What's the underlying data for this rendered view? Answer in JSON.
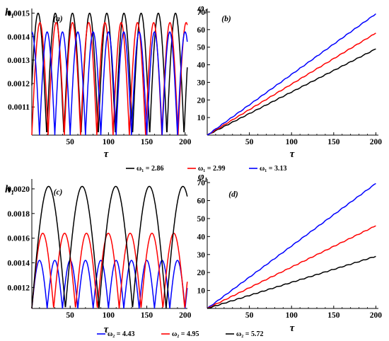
{
  "chart_data": [
    {
      "type": "line",
      "panel_label": "(a)",
      "xlabel": "τ",
      "ylabel": "h₁",
      "xlim": [
        0,
        203
      ],
      "ylim": [
        0.00098,
        0.00152
      ],
      "xticks": [
        "50",
        "100",
        "150",
        "200"
      ],
      "yticks": [
        "0.0011",
        "0.0012",
        "0.0013",
        "0.0014",
        "0.0015"
      ],
      "series": [
        {
          "name": "ω₁ = 2.86",
          "color": "#000000",
          "amplitude_max": 0.0015,
          "minimum": 0.00098,
          "period": 22.4,
          "phase": 3.0
        },
        {
          "name": "ω₁ = 2.99",
          "color": "#ff0000",
          "amplitude_max": 0.00146,
          "minimum": 0.00098,
          "period": 21.2,
          "phase": 0.0
        },
        {
          "name": "ω₁ = 3.13",
          "color": "#0000ff",
          "amplitude_max": 0.00142,
          "minimum": 0.00098,
          "period": 20.0,
          "phase": 10.0
        }
      ]
    },
    {
      "type": "line",
      "panel_label": "(b)",
      "xlabel": "τ",
      "ylabel": "φ₁",
      "xlim": [
        0,
        203
      ],
      "ylim": [
        0,
        72
      ],
      "xticks": [
        "50",
        "100",
        "150",
        "200"
      ],
      "yticks": [
        "10",
        "20",
        "30",
        "40",
        "50",
        "60",
        "70"
      ],
      "series": [
        {
          "name": "ω₁ = 2.86",
          "color": "#000000",
          "x": [
            0,
            200
          ],
          "y": [
            0,
            49
          ]
        },
        {
          "name": "ω₁ = 2.99",
          "color": "#ff0000",
          "x": [
            0,
            200
          ],
          "y": [
            0,
            58
          ]
        },
        {
          "name": "ω₁ = 3.13",
          "color": "#0000ff",
          "x": [
            0,
            200
          ],
          "y": [
            0,
            69
          ]
        }
      ]
    },
    {
      "type": "line",
      "panel_label": "(c)",
      "xlabel": "τ",
      "ylabel": "h₁",
      "xlim": [
        0,
        203
      ],
      "ylim": [
        0.00103,
        0.00208
      ],
      "xticks": [
        "50",
        "100",
        "150",
        "200"
      ],
      "yticks": [
        "0.0012",
        "0.0014",
        "0.0016",
        "0.0018",
        "0.0020"
      ],
      "series": [
        {
          "name": "ω₂ = 4.43",
          "color": "#0000ff",
          "amplitude_max": 0.00142,
          "minimum": 0.00103,
          "period": 20.0,
          "phase": 0.0
        },
        {
          "name": "ω₂ = 4.95",
          "color": "#ff0000",
          "amplitude_max": 0.00164,
          "minimum": 0.00103,
          "period": 28.5,
          "phase": 0.0
        },
        {
          "name": "ω₂ = 5.72",
          "color": "#000000",
          "amplitude_max": 0.00202,
          "minimum": 0.00103,
          "period": 43.8,
          "phase": 0.0
        }
      ]
    },
    {
      "type": "line",
      "panel_label": "(d)",
      "xlabel": "τ",
      "ylabel": "φ₁",
      "xlim": [
        0,
        203
      ],
      "ylim": [
        0,
        72
      ],
      "xticks": [
        "50",
        "100",
        "150",
        "200"
      ],
      "yticks": [
        "10",
        "20",
        "30",
        "40",
        "50",
        "60",
        "70"
      ],
      "series": [
        {
          "name": "ω₂ = 4.43",
          "color": "#0000ff",
          "x": [
            0,
            200
          ],
          "y": [
            0,
            69.5
          ]
        },
        {
          "name": "ω₂ = 4.95",
          "color": "#ff0000",
          "x": [
            0,
            200
          ],
          "y": [
            0,
            46
          ]
        },
        {
          "name": "ω₂ = 5.72",
          "color": "#000000",
          "x": [
            0,
            200
          ],
          "y": [
            0,
            29
          ]
        }
      ]
    }
  ],
  "legends": [
    {
      "items": [
        {
          "label": "ω₁ = 2.86",
          "color": "#000000"
        },
        {
          "label": "ω₁ = 2.99",
          "color": "#ff0000"
        },
        {
          "label": "ω₁ = 3.13",
          "color": "#0000ff"
        }
      ]
    },
    {
      "items": [
        {
          "label": "ω₂ = 4.43",
          "color": "#0000ff"
        },
        {
          "label": "ω₂ = 4.95",
          "color": "#ff0000"
        },
        {
          "label": "ω₂ = 5.72",
          "color": "#000000"
        }
      ]
    }
  ]
}
